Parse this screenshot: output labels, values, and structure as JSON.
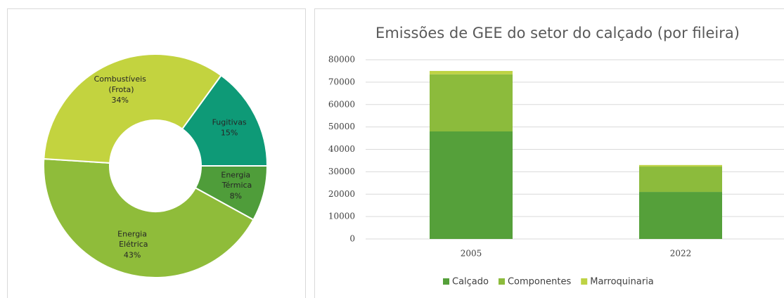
{
  "chart_data": [
    {
      "type": "pie",
      "categories": [
        "Fugitivas",
        "Energia Térmica",
        "Energia Elétrica",
        "Combustíveis (Frota)"
      ],
      "values": [
        15,
        8,
        43,
        34
      ],
      "value_labels": [
        "15%",
        "8%",
        "43%",
        "34%"
      ],
      "colors": [
        "#0e9a77",
        "#4f9d3a",
        "#8fbc3a",
        "#c3d33f"
      ]
    },
    {
      "type": "bar",
      "title": "Emissões de GEE do setor do calçado (por fileira)",
      "categories": [
        "2005",
        "2022"
      ],
      "series": [
        {
          "name": "Calçado",
          "color": "#55a03a",
          "values": [
            48000,
            21000
          ]
        },
        {
          "name": "Componentes",
          "color": "#8cbb3c",
          "values": [
            25500,
            11300
          ]
        },
        {
          "name": "Marroquinaria",
          "color": "#bed344",
          "values": [
            1500,
            700
          ]
        }
      ],
      "stacked": true,
      "ylim": [
        0,
        80000
      ],
      "yticks": [
        0,
        10000,
        20000,
        30000,
        40000,
        50000,
        60000,
        70000,
        80000
      ],
      "grid": true,
      "legend": "bottom"
    }
  ]
}
